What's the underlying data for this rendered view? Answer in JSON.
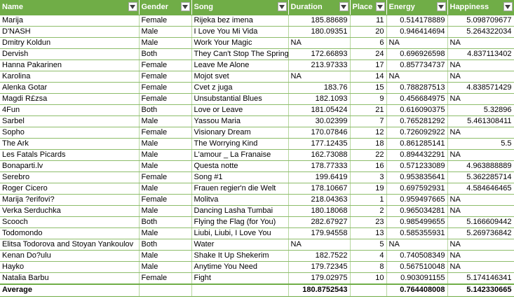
{
  "headers": [
    "Name",
    "Gender",
    "Song",
    "Duration",
    "Place",
    "Energy",
    "Happiness"
  ],
  "rows": [
    [
      "Marija",
      "Female",
      "Rijeka bez imena",
      "185.88689",
      "11",
      "0.514178889",
      "5.098709677"
    ],
    [
      "D'NASH",
      "Male",
      "I Love You Mi Vida",
      "180.09351",
      "20",
      "0.946414694",
      "5.264322034"
    ],
    [
      "Dmitry Koldun",
      "Male",
      "Work Your Magic",
      "NA",
      "6",
      "NA",
      "NA"
    ],
    [
      "Dervish",
      "Both",
      "They Can't Stop The Spring",
      "172.66893",
      "24",
      "0.696926598",
      "4.837113402"
    ],
    [
      "Hanna Pakarinen",
      "Female",
      "Leave Me Alone",
      "213.97333",
      "17",
      "0.857734737",
      "NA"
    ],
    [
      "Karolina",
      "Female",
      "Mojot svet",
      "NA",
      "14",
      "NA",
      "NA"
    ],
    [
      "Alenka Gotar",
      "Female",
      "Cvet z juga",
      "183.76",
      "15",
      "0.788287513",
      "4.838571429"
    ],
    [
      "Magdi R£zsa",
      "Female",
      "Unsubstantial Blues",
      "182.1093",
      "9",
      "0.456684975",
      "NA"
    ],
    [
      "4Fun",
      "Both",
      "Love or Leave",
      "181.05424",
      "21",
      "0.616090375",
      "5.32896"
    ],
    [
      "Sarbel",
      "Male",
      "Yassou Maria",
      "30.02399",
      "7",
      "0.765281292",
      "5.461308411"
    ],
    [
      "Sopho",
      "Female",
      "Visionary Dream",
      "170.07846",
      "12",
      "0.726092922",
      "NA"
    ],
    [
      "The Ark",
      "Male",
      "The Worrying Kind",
      "177.12435",
      "18",
      "0.861285141",
      "5.5"
    ],
    [
      "Les Fatals Picards",
      "Male",
      "L'amour _ La Fran\u001aaise",
      "162.73088",
      "22",
      "0.894432291",
      "NA"
    ],
    [
      "Bonaparti.lv",
      "Male",
      "Questa notte",
      "178.77333",
      "16",
      "0.571233089",
      "4.963888889"
    ],
    [
      "Serebro",
      "Female",
      "Song #1",
      "199.6419",
      "3",
      "0.953835641",
      "5.362285714"
    ],
    [
      "Roger Cicero",
      "Male",
      "Frauen regier'n die Welt",
      "178.10667",
      "19",
      "0.697592931",
      "4.584646465"
    ],
    [
      "Marija ?erifovi?",
      "Female",
      "Molitva",
      "218.04363",
      "1",
      "0.959497665",
      "NA"
    ],
    [
      "Verka Serduchka",
      "Male",
      "Dancing Lasha Tumbai",
      "180.18068",
      "2",
      "0.965034281",
      "NA"
    ],
    [
      "Scooch",
      "Both",
      "Flying the Flag (for You)",
      "282.67927",
      "23",
      "0.985499655",
      "5.166609442"
    ],
    [
      "Todomondo",
      "Male",
      "Liubi, Liubi, I Love You",
      "179.94558",
      "13",
      "0.585355931",
      "5.269736842"
    ],
    [
      "Elitsa Todorova and Stoyan Yankoulov",
      "Both",
      "Water",
      "NA",
      "5",
      "NA",
      "NA"
    ],
    [
      "Kenan Do?ulu",
      "Male",
      "Shake It Up Shekerim",
      "182.7522",
      "4",
      "0.740508349",
      "NA"
    ],
    [
      "Hayko",
      "Male",
      "Anytime You Need",
      "179.72345",
      "8",
      "0.567510048",
      "NA"
    ],
    [
      "Natalia Barbu",
      "Female",
      "Fight",
      "179.02975",
      "10",
      "0.903091155",
      "5.174146341"
    ]
  ],
  "footer": {
    "label": "Average",
    "duration": "180.8752543",
    "energy": "0.764408008",
    "happiness": "5.142330665"
  },
  "icons": {
    "filter": "filter-dropdown-icon"
  },
  "colors": {
    "header_bg": "#70ad47",
    "grid": "#8dbd6a"
  }
}
